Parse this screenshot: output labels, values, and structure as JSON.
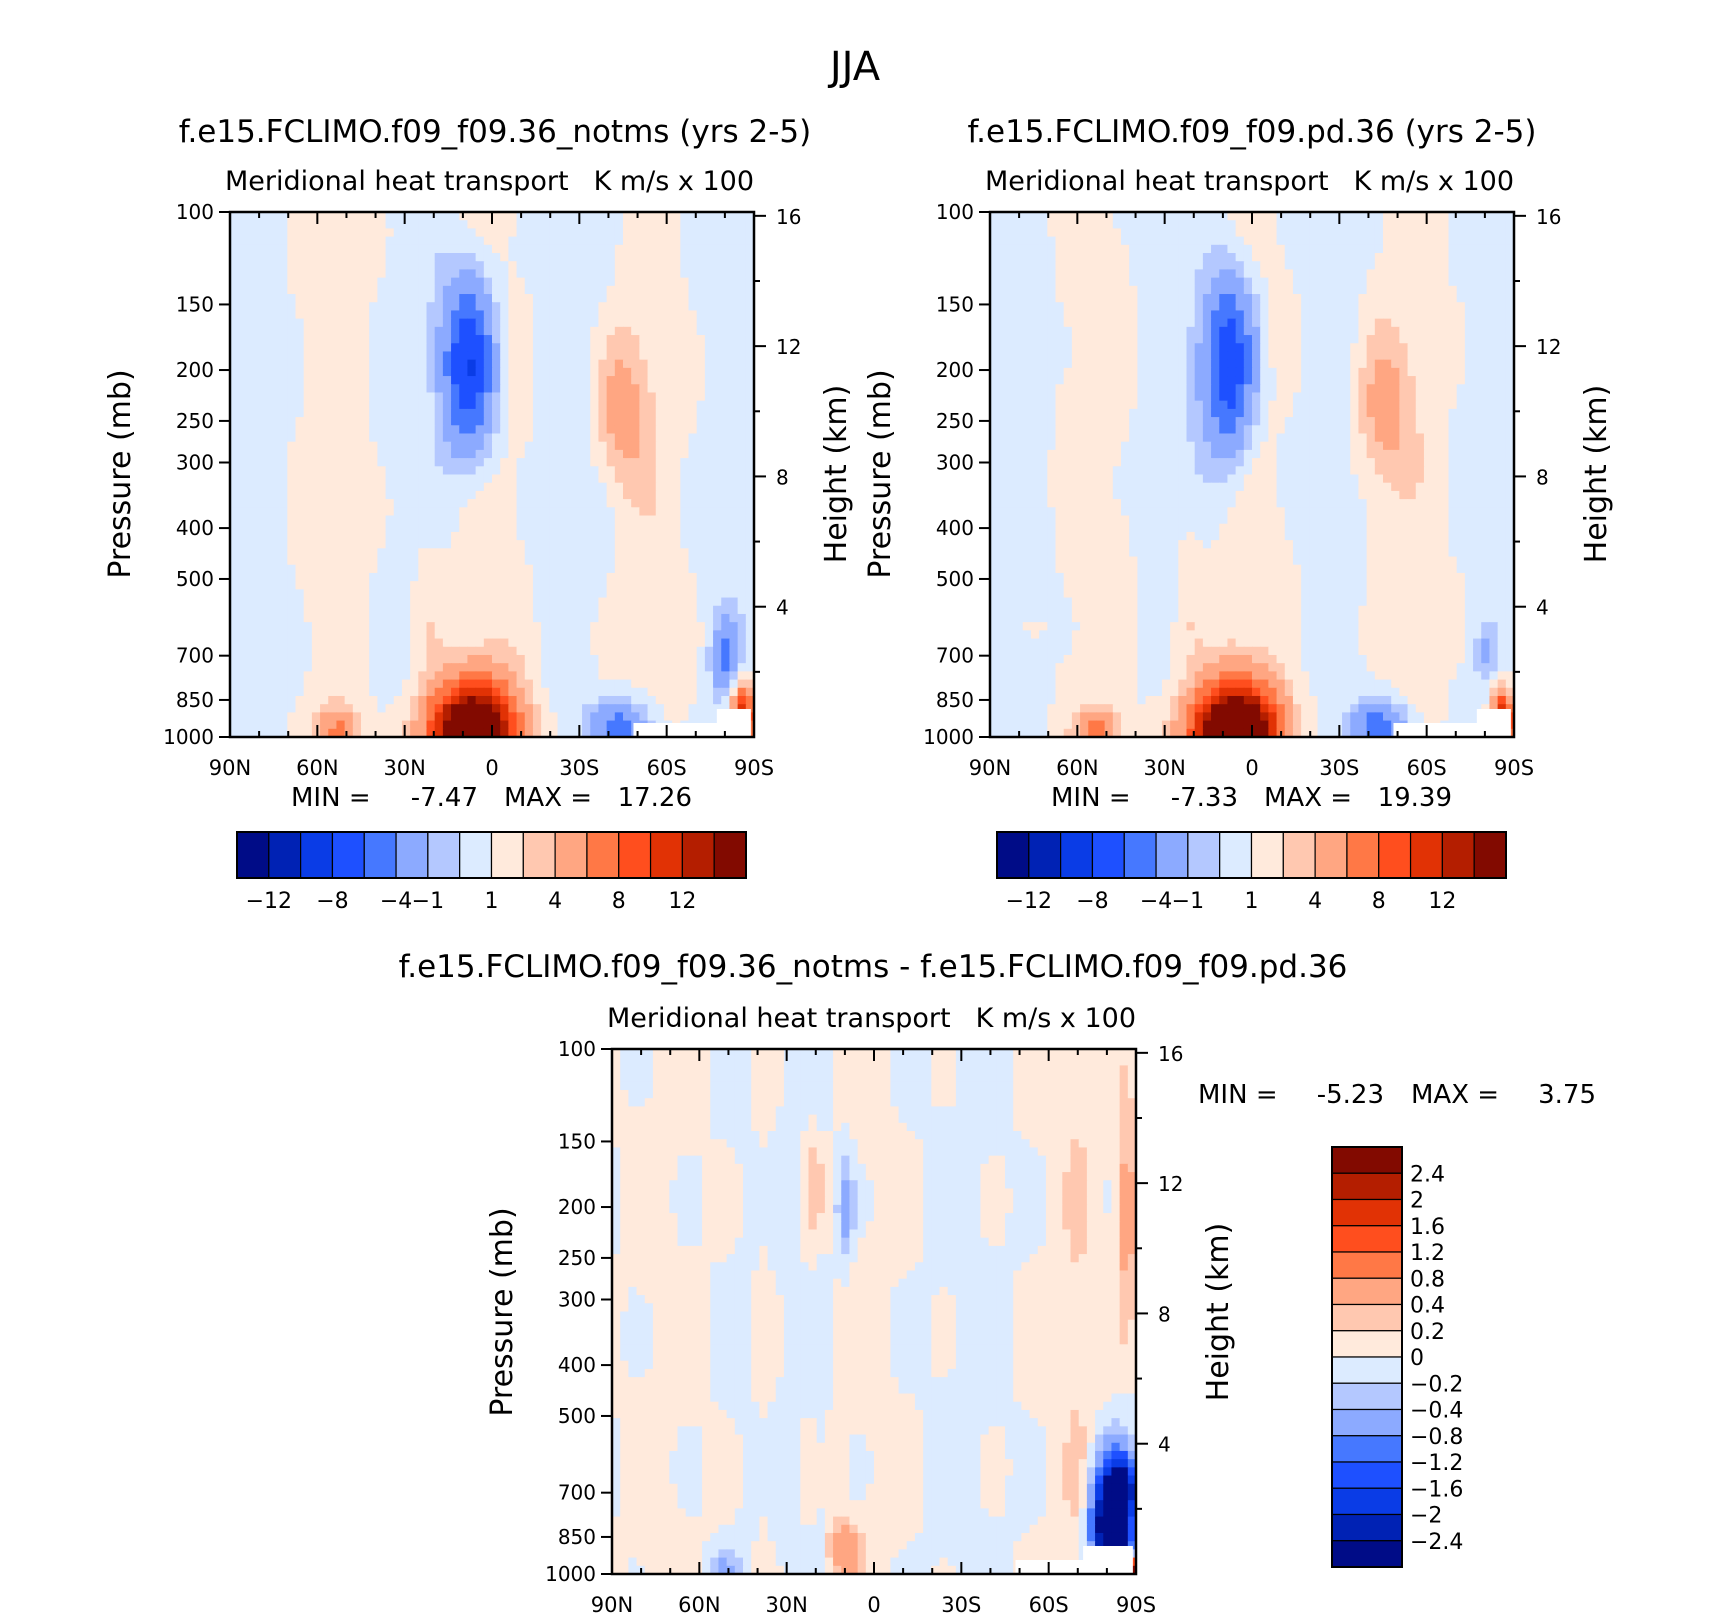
{
  "figure": {
    "title": "JJA"
  },
  "chart_data": [
    {
      "type": "heatmap",
      "id": "panel-notms",
      "title": "f.e15.FCLIMO.f09_f09.36_notms (yrs 2-5)",
      "subtitle_left": "Meridional heat transport",
      "subtitle_right": "K m/s x 100",
      "ylabel": "Pressure (mb)",
      "ylabel_right": "Height (km)",
      "x_ticks": [
        "90N",
        "60N",
        "30N",
        "0",
        "30S",
        "60S",
        "90S"
      ],
      "x_tick_values": [
        90,
        60,
        30,
        0,
        -30,
        -60,
        -90
      ],
      "y_ticks": [
        100,
        150,
        200,
        250,
        300,
        400,
        500,
        700,
        850,
        1000
      ],
      "y_right_ticks": [
        16,
        12,
        8,
        4
      ],
      "xlim": [
        90,
        -90
      ],
      "ylim": [
        1000,
        100
      ],
      "yscale": "log",
      "min_label": "MIN =",
      "min_value": "-7.47",
      "max_label": "MAX =",
      "max_value": "17.26",
      "colorbar_ticks": [
        "-12",
        "-8",
        "-4",
        "-1",
        "1",
        "4",
        "8",
        "12"
      ],
      "features": [
        {
          "lat": 8,
          "p": 190,
          "value": -7.5
        },
        {
          "lat": -48,
          "p": 230,
          "value": 2.5
        },
        {
          "lat": 6,
          "p": 970,
          "value": 17.3
        },
        {
          "lat": -45,
          "p": 960,
          "value": -5.0
        },
        {
          "lat": 53,
          "p": 970,
          "value": 4.0
        },
        {
          "lat": -85,
          "p": 900,
          "value": 10.0
        },
        {
          "lat": -82,
          "p": 700,
          "value": -4.0
        }
      ]
    },
    {
      "type": "heatmap",
      "id": "panel-pd",
      "title": "f.e15.FCLIMO.f09_f09.pd.36 (yrs 2-5)",
      "subtitle_left": "Meridional heat transport",
      "subtitle_right": "K m/s x 100",
      "ylabel": "Pressure (mb)",
      "ylabel_right": "Height (km)",
      "x_ticks": [
        "90N",
        "60N",
        "30N",
        "0",
        "30S",
        "60S",
        "90S"
      ],
      "x_tick_values": [
        90,
        60,
        30,
        0,
        -30,
        -60,
        -90
      ],
      "y_ticks": [
        100,
        150,
        200,
        250,
        300,
        400,
        500,
        700,
        850,
        1000
      ],
      "y_right_ticks": [
        16,
        12,
        8,
        4
      ],
      "xlim": [
        90,
        -90
      ],
      "ylim": [
        1000,
        100
      ],
      "yscale": "log",
      "min_label": "MIN =",
      "min_value": "-7.33",
      "max_label": "MAX =",
      "max_value": "19.39",
      "colorbar_ticks": [
        "-12",
        "-8",
        "-4",
        "-1",
        "1",
        "4",
        "8",
        "12"
      ],
      "features": [
        {
          "lat": 8,
          "p": 190,
          "value": -7.3
        },
        {
          "lat": -48,
          "p": 230,
          "value": 2.5
        },
        {
          "lat": 6,
          "p": 970,
          "value": 19.4
        },
        {
          "lat": -45,
          "p": 960,
          "value": -5.0
        },
        {
          "lat": 53,
          "p": 970,
          "value": 4.0
        },
        {
          "lat": -85,
          "p": 930,
          "value": 10.0
        }
      ]
    },
    {
      "type": "heatmap",
      "id": "panel-diff",
      "title": "f.e15.FCLIMO.f09_f09.36_notms - f.e15.FCLIMO.f09_f09.pd.36",
      "subtitle_left": "Meridional heat transport",
      "subtitle_right": "K m/s x 100",
      "ylabel": "Pressure (mb)",
      "ylabel_right": "Height (km)",
      "x_ticks": [
        "90N",
        "60N",
        "30N",
        "0",
        "30S",
        "60S",
        "90S"
      ],
      "x_tick_values": [
        90,
        60,
        30,
        0,
        -30,
        -60,
        -90
      ],
      "y_ticks": [
        100,
        150,
        200,
        250,
        300,
        400,
        500,
        700,
        850,
        1000
      ],
      "y_right_ticks": [
        16,
        12,
        8,
        4
      ],
      "xlim": [
        90,
        -90
      ],
      "ylim": [
        1000,
        100
      ],
      "yscale": "log",
      "min_label": "MIN =",
      "min_value": "-5.23",
      "max_label": "MAX =",
      "max_value": "3.75",
      "colorbar_ticks": [
        "2.4",
        "2",
        "1.6",
        "1.2",
        "0.8",
        "0.4",
        "0.2",
        "0",
        "-0.2",
        "-0.4",
        "-0.8",
        "-1.2",
        "-1.6",
        "-2",
        "-2.4"
      ],
      "features": [
        {
          "lat": -80,
          "p": 800,
          "value": -5.2
        },
        {
          "lat": -88,
          "p": 200,
          "value": 0.6
        },
        {
          "lat": 10,
          "p": 200,
          "value": -0.5
        },
        {
          "lat": 20,
          "p": 180,
          "value": 0.4
        },
        {
          "lat": 10,
          "p": 900,
          "value": 0.6
        }
      ]
    }
  ],
  "colors": {
    "scale1": [
      "#000c87",
      "#0022b4",
      "#0a3ce6",
      "#1e50ff",
      "#4678ff",
      "#8caaff",
      "#b4c8ff",
      "#dcebff",
      "#ffeadc",
      "#ffc8b0",
      "#ffa682",
      "#ff7846",
      "#ff4e1e",
      "#e13205",
      "#b41e00",
      "#820a00"
    ],
    "scale_diff": [
      "#000c87",
      "#0022b4",
      "#0a3ce6",
      "#1e50ff",
      "#4678ff",
      "#8caaff",
      "#b4c8ff",
      "#dcebff",
      "#ffeadc",
      "#ffc8b0",
      "#ffa682",
      "#ff7846",
      "#ff4e1e",
      "#e13205",
      "#b41e00",
      "#820a00"
    ]
  }
}
